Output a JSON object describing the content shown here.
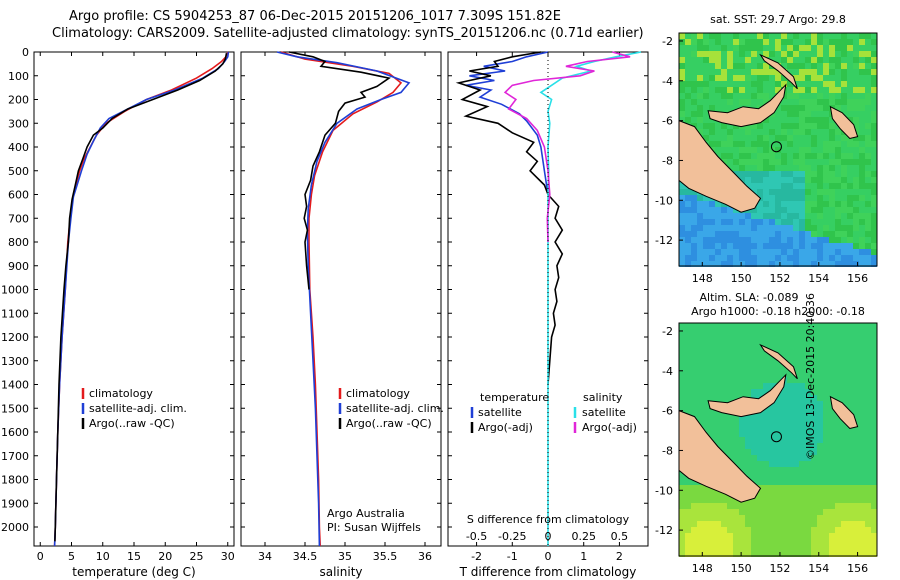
{
  "header": {
    "line1": "Argo profile: CS 5904253_87 06-Dec-2015 20151206_1017 7.309S 151.82E",
    "line2": "Climatology: CARS2009. Satellite-adjusted climatology: synTS_20151206.nc (0.71d earlier)"
  },
  "side_label": "©IMOS 13-Dec-2015 20:40:36",
  "colors": {
    "climatology": "#e31a1c",
    "satellite": "#1f3fd6",
    "argo": "#000000",
    "satellite_s": "#29e0e8",
    "argo_s": "#e026d8",
    "land": "#f2c09a",
    "ocean_deep": "#3a9fe0",
    "ocean_mid": "#2ec96a",
    "ocean_warm": "#9be034"
  },
  "depth_axis": {
    "ticks": [
      0,
      100,
      200,
      300,
      400,
      500,
      600,
      700,
      800,
      900,
      1000,
      1100,
      1200,
      1300,
      1400,
      1500,
      1600,
      1700,
      1800,
      1900,
      2000
    ],
    "min": 0,
    "max": 2080
  },
  "chart_data": [
    {
      "type": "line",
      "name": "temperature",
      "xlabel": "temperature (deg C)",
      "xlim": [
        -1,
        31
      ],
      "xticks": [
        0,
        5,
        10,
        15,
        20,
        25,
        30
      ],
      "legend": [
        "climatology",
        "satellite-adj. clim.",
        "Argo(..raw -QC)"
      ],
      "series": [
        {
          "name": "climatology",
          "color_key": "climatology",
          "points": [
            [
              30,
              0
            ],
            [
              29.7,
              20
            ],
            [
              29,
              40
            ],
            [
              27.5,
              70
            ],
            [
              25,
              110
            ],
            [
              21,
              160
            ],
            [
              17,
              200
            ],
            [
              13.5,
              250
            ],
            [
              10.5,
              300
            ],
            [
              9,
              350
            ],
            [
              8,
              400
            ],
            [
              7,
              450
            ],
            [
              6.3,
              500
            ],
            [
              5.8,
              550
            ],
            [
              5.3,
              600
            ],
            [
              5,
              650
            ],
            [
              4.6,
              750
            ],
            [
              4.4,
              800
            ],
            [
              4,
              1000
            ],
            [
              3.5,
              1200
            ],
            [
              3.1,
              1400
            ],
            [
              2.8,
              1600
            ],
            [
              2.6,
              1800
            ],
            [
              2.4,
              2000
            ],
            [
              2.3,
              2080
            ]
          ]
        },
        {
          "name": "satellite-adj. clim.",
          "color_key": "satellite",
          "points": [
            [
              30.1,
              0
            ],
            [
              30,
              20
            ],
            [
              29.5,
              40
            ],
            [
              28.5,
              70
            ],
            [
              26,
              110
            ],
            [
              21.5,
              160
            ],
            [
              17,
              200
            ],
            [
              14,
              240
            ],
            [
              11,
              280
            ],
            [
              9.6,
              320
            ],
            [
              8.6,
              370
            ],
            [
              7.5,
              430
            ],
            [
              6.6,
              500
            ],
            [
              5.9,
              560
            ],
            [
              5.3,
              610
            ],
            [
              4.9,
              700
            ],
            [
              4.5,
              800
            ],
            [
              4,
              1000
            ],
            [
              3.5,
              1200
            ],
            [
              3.1,
              1400
            ],
            [
              2.8,
              1600
            ],
            [
              2.6,
              1800
            ],
            [
              2.4,
              2000
            ],
            [
              2.3,
              2080
            ]
          ]
        },
        {
          "name": "Argo(..raw -QC)",
          "color_key": "argo",
          "points": [
            [
              29.8,
              5
            ],
            [
              29.6,
              30
            ],
            [
              29.2,
              50
            ],
            [
              28,
              80
            ],
            [
              25.5,
              120
            ],
            [
              22,
              160
            ],
            [
              18,
              200
            ],
            [
              14,
              240
            ],
            [
              11.5,
              280
            ],
            [
              10,
              320
            ],
            [
              8.5,
              350
            ],
            [
              7.5,
              400
            ],
            [
              6.8,
              450
            ],
            [
              6.1,
              500
            ],
            [
              5.6,
              560
            ],
            [
              5.1,
              620
            ],
            [
              4.7,
              700
            ],
            [
              4.5,
              800
            ],
            [
              4.1,
              900
            ],
            [
              3.8,
              1000
            ],
            [
              3.3,
              1200
            ],
            [
              3,
              1400
            ],
            [
              2.8,
              1600
            ],
            [
              2.6,
              1800
            ],
            [
              2.4,
              2000
            ],
            [
              2.35,
              2060
            ]
          ]
        }
      ]
    },
    {
      "type": "line",
      "name": "salinity",
      "xlabel": "salinity",
      "xlim": [
        33.7,
        36.2
      ],
      "xticks": [
        34,
        34.5,
        35,
        35.5,
        36
      ],
      "xticklabels": [
        "34",
        "34.5",
        "35",
        "35.5",
        "36"
      ],
      "legend": [
        "climatology",
        "satellite-adj. clim.",
        "Argo(..raw -QC)"
      ],
      "annotation": [
        "Argo Australia",
        "PI: Susan Wijffels"
      ],
      "series": [
        {
          "name": "climatology",
          "color_key": "climatology",
          "points": [
            [
              34.2,
              0
            ],
            [
              34.5,
              30
            ],
            [
              35.1,
              60
            ],
            [
              35.55,
              90
            ],
            [
              35.7,
              130
            ],
            [
              35.6,
              170
            ],
            [
              35.4,
              210
            ],
            [
              35.1,
              260
            ],
            [
              34.85,
              330
            ],
            [
              34.72,
              420
            ],
            [
              34.62,
              520
            ],
            [
              34.58,
              600
            ],
            [
              34.55,
              700
            ],
            [
              34.55,
              800
            ],
            [
              34.56,
              1000
            ],
            [
              34.6,
              1200
            ],
            [
              34.63,
              1400
            ],
            [
              34.65,
              1600
            ],
            [
              34.67,
              1800
            ],
            [
              34.68,
              2000
            ],
            [
              34.69,
              2080
            ]
          ]
        },
        {
          "name": "satellite-adj. clim.",
          "color_key": "satellite",
          "points": [
            [
              34.15,
              0
            ],
            [
              34.4,
              20
            ],
            [
              34.9,
              45
            ],
            [
              35.4,
              80
            ],
            [
              35.8,
              130
            ],
            [
              35.7,
              170
            ],
            [
              35.45,
              200
            ],
            [
              35.15,
              240
            ],
            [
              34.9,
              300
            ],
            [
              34.75,
              380
            ],
            [
              34.65,
              460
            ],
            [
              34.58,
              560
            ],
            [
              34.54,
              660
            ],
            [
              34.53,
              760
            ],
            [
              34.54,
              900
            ],
            [
              34.57,
              1100
            ],
            [
              34.6,
              1300
            ],
            [
              34.63,
              1500
            ],
            [
              34.65,
              1700
            ],
            [
              34.67,
              1900
            ],
            [
              34.68,
              2080
            ]
          ]
        },
        {
          "name": "Argo(..raw -QC)",
          "color_key": "argo",
          "points": [
            [
              34.3,
              0
            ],
            [
              34.6,
              20
            ],
            [
              34.75,
              40
            ],
            [
              34.7,
              60
            ],
            [
              35.2,
              85
            ],
            [
              35.55,
              110
            ],
            [
              35.4,
              145
            ],
            [
              35.2,
              170
            ],
            [
              35.25,
              190
            ],
            [
              35.0,
              215
            ],
            [
              34.92,
              250
            ],
            [
              34.88,
              300
            ],
            [
              34.75,
              350
            ],
            [
              34.68,
              420
            ],
            [
              34.6,
              480
            ],
            [
              34.57,
              540
            ],
            [
              34.5,
              600
            ],
            [
              34.52,
              650
            ],
            [
              34.49,
              700
            ],
            [
              34.53,
              750
            ],
            [
              34.5,
              800
            ],
            [
              34.52,
              900
            ],
            [
              34.55,
              1000
            ]
          ]
        }
      ]
    },
    {
      "type": "line",
      "name": "difference",
      "xlabel": "T difference from climatology",
      "xlabel_top": "S difference from climatology",
      "xlim": [
        -2.8,
        2.8
      ],
      "xticks": [
        -2,
        -1,
        0,
        1,
        2
      ],
      "xticks_s": [
        -0.5,
        -0.25,
        0,
        0.25,
        0.5
      ],
      "legend_t": {
        "title": "temperature",
        "items": [
          "satellite",
          "Argo(-adj)"
        ]
      },
      "legend_s": {
        "title": "salinity",
        "items": [
          "satellite",
          "Argo(-adj)"
        ]
      },
      "series": [
        {
          "name": "T satellite",
          "color_key": "satellite",
          "points": [
            [
              0,
              0
            ],
            [
              -0.6,
              20
            ],
            [
              -1,
              40
            ],
            [
              -1.8,
              60
            ],
            [
              -1.2,
              80
            ],
            [
              -2.2,
              100
            ],
            [
              -1.5,
              120
            ],
            [
              -2.3,
              140
            ],
            [
              -1.6,
              160
            ],
            [
              -1.9,
              190
            ],
            [
              -1.3,
              220
            ],
            [
              -0.8,
              260
            ],
            [
              -0.6,
              290
            ],
            [
              -0.3,
              350
            ],
            [
              -0.2,
              400
            ],
            [
              -0.1,
              500
            ],
            [
              0,
              600
            ]
          ]
        },
        {
          "name": "T Argo(-adj)",
          "color_key": "argo",
          "points": [
            [
              -0.2,
              0
            ],
            [
              -1,
              20
            ],
            [
              -1.5,
              40
            ],
            [
              -1.4,
              60
            ],
            [
              -2.2,
              80
            ],
            [
              -1.6,
              100
            ],
            [
              -2.5,
              130
            ],
            [
              -1.9,
              160
            ],
            [
              -2.4,
              200
            ],
            [
              -1.7,
              230
            ],
            [
              -2.3,
              270
            ],
            [
              -1.4,
              300
            ],
            [
              -1,
              340
            ],
            [
              -0.4,
              380
            ],
            [
              -0.6,
              420
            ],
            [
              -0.3,
              460
            ],
            [
              -0.5,
              500
            ],
            [
              -0.1,
              560
            ],
            [
              0,
              600
            ],
            [
              0.3,
              650
            ],
            [
              0.2,
              700
            ],
            [
              0.4,
              750
            ],
            [
              0.2,
              800
            ],
            [
              0.4,
              850
            ],
            [
              0.25,
              900
            ],
            [
              0.3,
              950
            ],
            [
              0.2,
              1000
            ],
            [
              0.25,
              1050
            ],
            [
              0.15,
              1100
            ],
            [
              0.2,
              1150
            ],
            [
              0.1,
              1200
            ],
            [
              0.05,
              1300
            ],
            [
              0,
              1400
            ]
          ]
        },
        {
          "name": "S satellite",
          "color_key": "satellite_s",
          "points": [
            [
              2.6,
              0
            ],
            [
              1.9,
              20
            ],
            [
              1.3,
              40
            ],
            [
              0.8,
              60
            ],
            [
              1.2,
              80
            ],
            [
              0.4,
              110
            ],
            [
              0.1,
              140
            ],
            [
              -0.2,
              170
            ],
            [
              0.1,
              200
            ],
            [
              0,
              250
            ],
            [
              0.05,
              300
            ],
            [
              0,
              400
            ],
            [
              0.02,
              500
            ],
            [
              0,
              600
            ],
            [
              0,
              800
            ],
            [
              0,
              1000
            ],
            [
              0,
              1500
            ],
            [
              0,
              2080
            ]
          ]
        },
        {
          "name": "S Argo(-adj)",
          "color_key": "argo_s",
          "points": [
            [
              1.8,
              0
            ],
            [
              2.3,
              20
            ],
            [
              1.1,
              40
            ],
            [
              0.5,
              60
            ],
            [
              1.3,
              80
            ],
            [
              0.9,
              100
            ],
            [
              -0.4,
              120
            ],
            [
              -1,
              140
            ],
            [
              -1.2,
              170
            ],
            [
              -0.9,
              200
            ],
            [
              -1.1,
              240
            ],
            [
              -0.6,
              280
            ],
            [
              -0.3,
              330
            ],
            [
              -0.1,
              400
            ],
            [
              0,
              500
            ],
            [
              0.05,
              600
            ],
            [
              -0.02,
              700
            ],
            [
              0,
              800
            ]
          ]
        }
      ]
    },
    {
      "type": "heatmap",
      "name": "sst_map",
      "title": "sat. SST: 29.7  Argo: 29.8",
      "xlim": [
        146.8,
        157.0
      ],
      "ylim": [
        -13.3,
        -1.6
      ],
      "xticks": [
        148,
        150,
        152,
        154,
        156
      ],
      "yticks": [
        -2,
        -4,
        -6,
        -8,
        -10,
        -12
      ],
      "float_position": [
        151.82,
        -7.309
      ]
    },
    {
      "type": "heatmap",
      "name": "sla_map",
      "title_lines": [
        "Altim. SLA: -0.089",
        "Argo h1000: -0.18  h2000: -0.18"
      ],
      "xlim": [
        146.8,
        157.0
      ],
      "ylim": [
        -13.3,
        -1.6
      ],
      "xticks": [
        148,
        150,
        152,
        154,
        156
      ],
      "yticks": [
        -2,
        -4,
        -6,
        -8,
        -10,
        -12
      ],
      "float_position": [
        151.82,
        -7.309
      ]
    }
  ]
}
